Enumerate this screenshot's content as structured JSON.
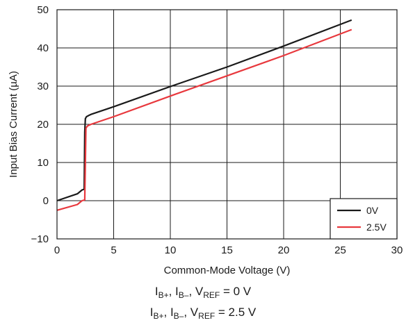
{
  "chart_data": {
    "type": "line",
    "xlabel": "Common-Mode Voltage (V)",
    "ylabel": "Input Bias Current (µA)",
    "xlim": [
      0,
      30
    ],
    "ylim": [
      -10,
      50
    ],
    "xticks": [
      "0",
      "5",
      "10",
      "15",
      "20",
      "25",
      "30"
    ],
    "yticks": [
      "−10",
      "0",
      "10",
      "20",
      "30",
      "40",
      "50"
    ],
    "grid": true,
    "legend_position": "bottom-right",
    "series": [
      {
        "name": "0V",
        "color": "#1a1a1a",
        "x": [
          0,
          1.8,
          2.2,
          2.4,
          2.45,
          2.5,
          2.6,
          2.8,
          3.0,
          5.0,
          10.0,
          15.0,
          20.0,
          26.0
        ],
        "y": [
          0.0,
          1.8,
          2.8,
          3.0,
          18.0,
          21.5,
          22.0,
          22.3,
          22.6,
          24.6,
          29.9,
          35.0,
          40.5,
          47.3
        ]
      },
      {
        "name": "2.5V",
        "color": "#e8383d",
        "x": [
          0,
          1.8,
          2.2,
          2.45,
          2.5,
          2.55,
          2.7,
          3.0,
          5.0,
          10.0,
          15.0,
          20.0,
          26.0
        ],
        "y": [
          -2.5,
          -1.0,
          0.0,
          0.2,
          10.0,
          19.0,
          19.6,
          20.0,
          22.0,
          27.4,
          32.7,
          38.0,
          44.8
        ]
      }
    ]
  },
  "captions": {
    "line1": {
      "I": "I",
      "sub1": "B+",
      "mid": ", I",
      "sub2": "B–",
      "mid2": ", V",
      "sub3": "REF",
      "rest": " = 0 V"
    },
    "line2": {
      "I": "I",
      "sub1": "B+",
      "mid": ", I",
      "sub2": "B–",
      "mid2": ", V",
      "sub3": "REF",
      "rest": " = 2.5 V"
    }
  }
}
